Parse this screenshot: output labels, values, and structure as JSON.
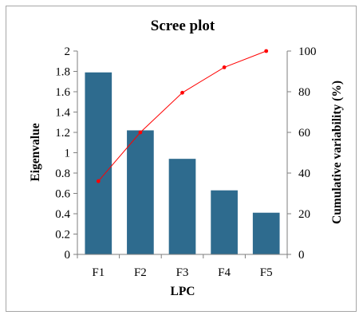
{
  "chart_data": {
    "type": "bar",
    "title": "Scree plot",
    "xlabel": "LPC",
    "ylabel": "Eigenvalue",
    "y2label": "Cumulative variability (%)",
    "categories": [
      "F1",
      "F2",
      "F3",
      "F4",
      "F5"
    ],
    "series": [
      {
        "type": "bar",
        "axis": "left",
        "values": [
          1.79,
          1.22,
          0.94,
          0.63,
          0.41
        ],
        "color": "#2e6b8e"
      },
      {
        "type": "line",
        "axis": "right",
        "values": [
          36,
          60,
          79.5,
          92,
          100
        ],
        "color": "#ff0000"
      }
    ],
    "ylim": [
      0,
      2
    ],
    "y2lim": [
      0,
      100
    ],
    "yticks": [
      "0",
      "0.2",
      "0.4",
      "0.6",
      "0.8",
      "1",
      "1.2",
      "1.4",
      "1.6",
      "1.8",
      "2"
    ],
    "y2ticks": [
      "0",
      "20",
      "40",
      "60",
      "80",
      "100"
    ],
    "grid": false,
    "legend": "none"
  }
}
